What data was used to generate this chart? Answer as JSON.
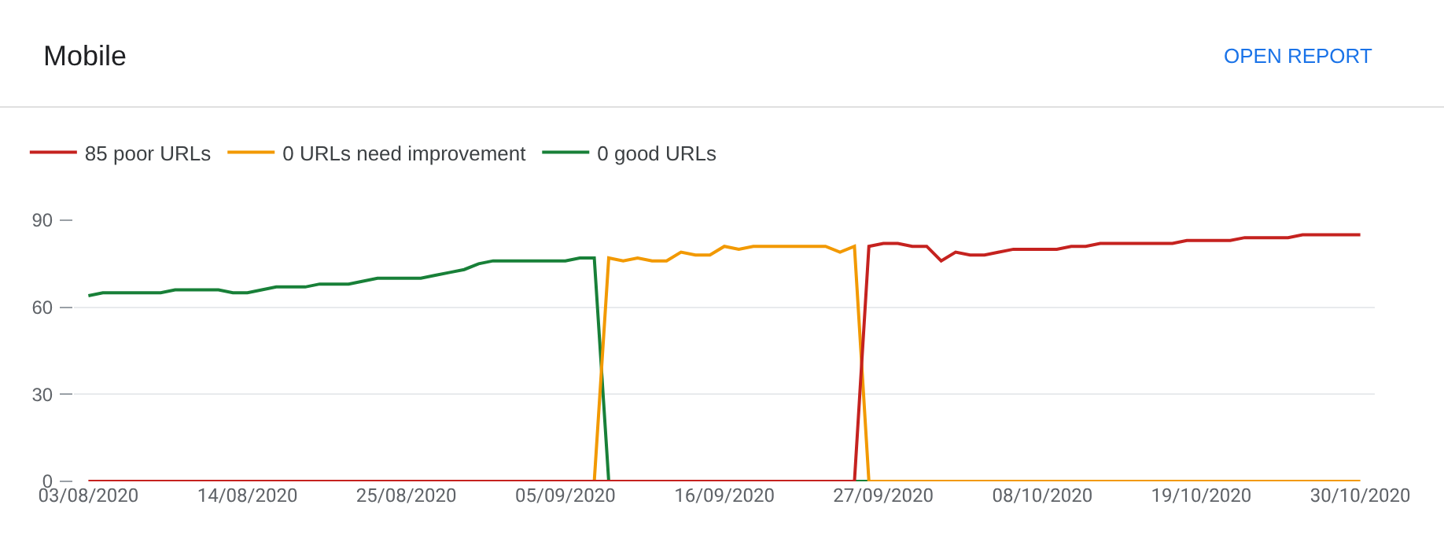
{
  "chart_data": {
    "type": "line",
    "title": "Mobile",
    "annotations": [
      "OPEN REPORT"
    ],
    "x": [
      "2020-08-03",
      "2020-08-04",
      "2020-08-05",
      "2020-08-06",
      "2020-08-07",
      "2020-08-08",
      "2020-08-09",
      "2020-08-10",
      "2020-08-11",
      "2020-08-12",
      "2020-08-13",
      "2020-08-14",
      "2020-08-15",
      "2020-08-16",
      "2020-08-17",
      "2020-08-18",
      "2020-08-19",
      "2020-08-20",
      "2020-08-21",
      "2020-08-22",
      "2020-08-23",
      "2020-08-24",
      "2020-08-25",
      "2020-08-26",
      "2020-08-27",
      "2020-08-28",
      "2020-08-29",
      "2020-08-30",
      "2020-08-31",
      "2020-09-01",
      "2020-09-02",
      "2020-09-03",
      "2020-09-04",
      "2020-09-05",
      "2020-09-06",
      "2020-09-07",
      "2020-09-08",
      "2020-09-09",
      "2020-09-10",
      "2020-09-11",
      "2020-09-12",
      "2020-09-13",
      "2020-09-14",
      "2020-09-15",
      "2020-09-16",
      "2020-09-17",
      "2020-09-18",
      "2020-09-19",
      "2020-09-20",
      "2020-09-21",
      "2020-09-22",
      "2020-09-23",
      "2020-09-24",
      "2020-09-25",
      "2020-09-26",
      "2020-09-27",
      "2020-09-28",
      "2020-09-29",
      "2020-09-30",
      "2020-10-01",
      "2020-10-02",
      "2020-10-03",
      "2020-10-04",
      "2020-10-05",
      "2020-10-06",
      "2020-10-07",
      "2020-10-08",
      "2020-10-09",
      "2020-10-10",
      "2020-10-11",
      "2020-10-12",
      "2020-10-13",
      "2020-10-14",
      "2020-10-15",
      "2020-10-16",
      "2020-10-17",
      "2020-10-18",
      "2020-10-19",
      "2020-10-20",
      "2020-10-21",
      "2020-10-22",
      "2020-10-23",
      "2020-10-24",
      "2020-10-25",
      "2020-10-26",
      "2020-10-27",
      "2020-10-28",
      "2020-10-29",
      "2020-10-30"
    ],
    "series": [
      {
        "name": "85 poor URLs",
        "color": "#c5221f",
        "values": [
          0,
          0,
          0,
          0,
          0,
          0,
          0,
          0,
          0,
          0,
          0,
          0,
          0,
          0,
          0,
          0,
          0,
          0,
          0,
          0,
          0,
          0,
          0,
          0,
          0,
          0,
          0,
          0,
          0,
          0,
          0,
          0,
          0,
          0,
          0,
          0,
          0,
          0,
          0,
          0,
          0,
          0,
          0,
          0,
          0,
          0,
          0,
          0,
          0,
          0,
          0,
          0,
          0,
          0,
          81,
          82,
          82,
          81,
          81,
          76,
          79,
          78,
          78,
          79,
          80,
          80,
          80,
          80,
          81,
          81,
          82,
          82,
          82,
          82,
          82,
          82,
          83,
          83,
          83,
          83,
          84,
          84,
          84,
          84,
          85,
          85,
          85,
          85,
          85
        ]
      },
      {
        "name": "0 URLs need improvement",
        "color": "#f29900",
        "values": [
          null,
          null,
          null,
          null,
          null,
          null,
          null,
          null,
          null,
          null,
          null,
          null,
          null,
          null,
          null,
          null,
          null,
          null,
          null,
          null,
          null,
          null,
          null,
          null,
          null,
          null,
          null,
          null,
          null,
          null,
          null,
          null,
          null,
          null,
          null,
          0,
          77,
          76,
          77,
          76,
          76,
          79,
          78,
          78,
          81,
          80,
          81,
          81,
          81,
          81,
          81,
          81,
          79,
          81,
          0,
          0,
          0,
          0,
          0,
          0,
          0,
          0,
          0,
          0,
          0,
          0,
          0,
          0,
          0,
          0,
          0,
          0,
          0,
          0,
          0,
          0,
          0,
          0,
          0,
          0,
          0,
          0,
          0,
          0,
          0,
          0,
          0,
          0,
          0
        ]
      },
      {
        "name": "0 good URLs",
        "color": "#188038",
        "values": [
          64,
          65,
          65,
          65,
          65,
          65,
          66,
          66,
          66,
          66,
          65,
          65,
          66,
          67,
          67,
          67,
          68,
          68,
          68,
          69,
          70,
          70,
          70,
          70,
          71,
          72,
          73,
          75,
          76,
          76,
          76,
          76,
          76,
          76,
          77,
          77,
          0,
          null,
          null,
          null,
          null,
          null,
          null,
          null,
          null,
          null,
          null,
          null,
          null,
          null,
          null,
          null,
          null,
          0,
          0,
          null,
          null,
          null,
          null,
          null,
          null,
          null,
          null,
          null,
          null,
          null,
          null,
          null,
          null,
          null,
          null,
          null,
          null,
          null,
          null,
          null,
          null,
          null,
          null,
          null,
          null,
          null,
          null,
          null,
          null,
          null,
          null,
          null,
          null
        ]
      }
    ],
    "xlim": [
      "2020-08-02",
      "2020-10-31"
    ],
    "xticks": [
      {
        "value": "2020-08-03",
        "label": "03/08/2020"
      },
      {
        "value": "2020-08-14",
        "label": "14/08/2020"
      },
      {
        "value": "2020-08-25",
        "label": "25/08/2020"
      },
      {
        "value": "2020-09-05",
        "label": "05/09/2020"
      },
      {
        "value": "2020-09-16",
        "label": "16/09/2020"
      },
      {
        "value": "2020-09-27",
        "label": "27/09/2020"
      },
      {
        "value": "2020-10-08",
        "label": "08/10/2020"
      },
      {
        "value": "2020-10-19",
        "label": "19/10/2020"
      },
      {
        "value": "2020-10-30",
        "label": "30/10/2020"
      }
    ],
    "ylim": [
      0,
      90
    ],
    "yticks": [
      0,
      30,
      60,
      90
    ],
    "grid": "y",
    "legend": "top left",
    "line_style": "solid"
  }
}
